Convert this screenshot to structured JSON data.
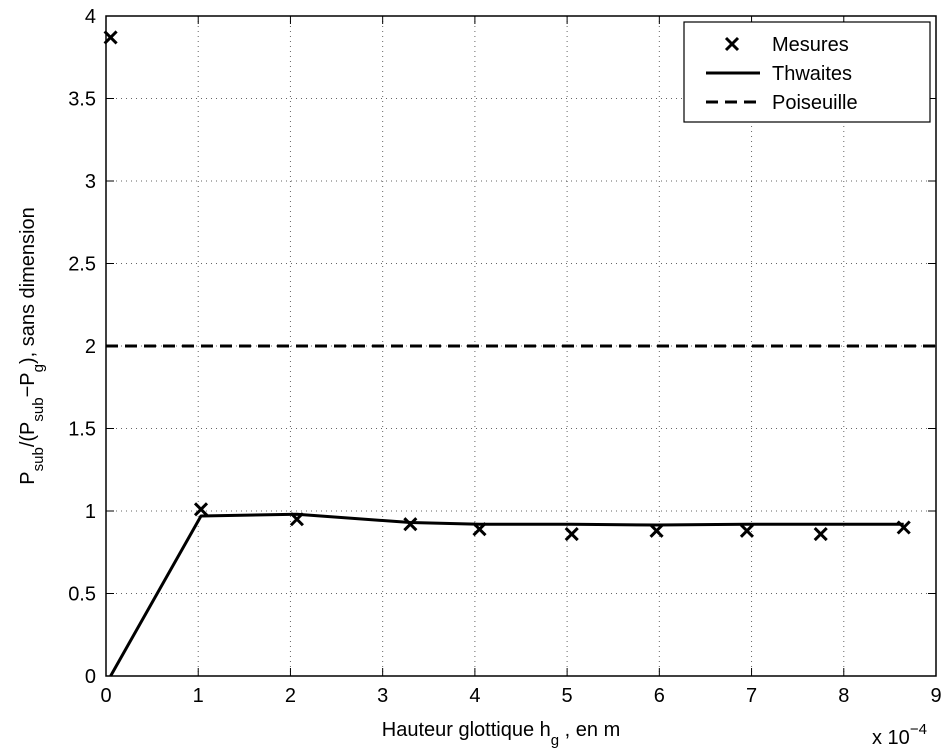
{
  "chart_data": {
    "type": "line",
    "xlabel": {
      "text": "Hauteur glottique h",
      "sub": "g",
      "tail": " , en m"
    },
    "ylabel": {
      "p1": "P",
      "s1": "sub",
      "p2": "/(P",
      "s2": "sub",
      "p3": "−P",
      "s3": "g",
      "p4": "), sans dimension"
    },
    "x_multiplier": {
      "base": "x 10",
      "exp": "−4"
    },
    "xlim": [
      0,
      9
    ],
    "ylim": [
      0,
      4
    ],
    "xticks": [
      "0",
      "1",
      "2",
      "3",
      "4",
      "5",
      "6",
      "7",
      "8",
      "9"
    ],
    "yticks": [
      "0",
      "0.5",
      "1",
      "1.5",
      "2",
      "2.5",
      "3",
      "3.5",
      "4"
    ],
    "grid": true,
    "legend_position": "top-right",
    "series": [
      {
        "name": "Mesures",
        "style": "markers-x",
        "color": "#000000",
        "x": [
          0.05,
          1.03,
          2.07,
          3.3,
          4.05,
          5.05,
          5.97,
          6.95,
          7.75,
          8.65
        ],
        "y": [
          3.87,
          1.01,
          0.95,
          0.92,
          0.89,
          0.86,
          0.88,
          0.88,
          0.86,
          0.9
        ]
      },
      {
        "name": "Thwaites",
        "style": "solid",
        "color": "#000000",
        "x": [
          0.05,
          1.03,
          2.07,
          3.3,
          4.05,
          5.05,
          5.97,
          6.95,
          7.75,
          8.65
        ],
        "y": [
          0.0,
          0.97,
          0.98,
          0.93,
          0.92,
          0.92,
          0.915,
          0.92,
          0.92,
          0.92
        ]
      },
      {
        "name": "Poiseuille",
        "style": "dashed",
        "color": "#000000",
        "x": [
          0,
          9
        ],
        "y": [
          2.0,
          2.0
        ]
      }
    ]
  }
}
